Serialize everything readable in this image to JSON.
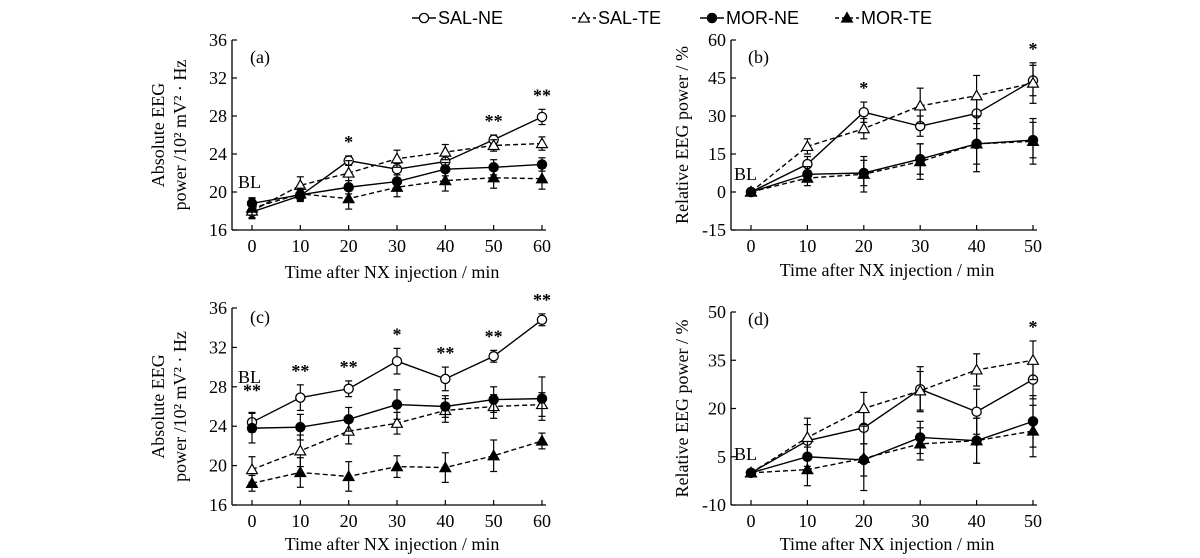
{
  "legend": [
    {
      "label": "SAL-NE",
      "marker": "circle-open",
      "line": "solid"
    },
    {
      "label": "SAL-TE",
      "marker": "triangle-open",
      "line": "dashed"
    },
    {
      "label": "MOR-NE",
      "marker": "circle-filled",
      "line": "solid"
    },
    {
      "label": "MOR-TE",
      "marker": "triangle-filled",
      "line": "dashed"
    }
  ],
  "chart_data": [
    {
      "panel": "(a)",
      "type": "line",
      "xlabel": "Time after NX injection / min",
      "ylabel_line1": "Absolute EEG",
      "ylabel_line2": "power /10² mV² · Hz",
      "xticks": [
        0,
        10,
        20,
        30,
        40,
        50,
        60
      ],
      "yticks": [
        16,
        20,
        24,
        28,
        32,
        36
      ],
      "ylim": [
        16,
        36
      ],
      "baseline_label": "BL",
      "series": [
        {
          "name": "SAL-NE",
          "values": [
            17.9,
            19.6,
            23.3,
            22.4,
            23.2,
            25.5,
            27.9
          ],
          "errors": [
            0.6,
            0.6,
            0.5,
            0.6,
            0.6,
            0.5,
            0.8
          ]
        },
        {
          "name": "SAL-TE",
          "values": [
            18.0,
            20.7,
            22.0,
            23.5,
            24.2,
            24.9,
            25.1
          ],
          "errors": [
            0.8,
            0.9,
            1.3,
            0.9,
            0.8,
            0.6,
            0.7
          ]
        },
        {
          "name": "MOR-NE",
          "values": [
            18.8,
            19.7,
            20.5,
            21.1,
            22.4,
            22.6,
            22.9
          ],
          "errors": [
            0.5,
            0.6,
            0.7,
            0.7,
            0.7,
            0.8,
            0.7
          ]
        },
        {
          "name": "MOR-TE",
          "values": [
            18.3,
            19.8,
            19.3,
            20.5,
            21.2,
            21.5,
            21.4
          ],
          "errors": [
            1.1,
            0.6,
            1.1,
            1.0,
            1.1,
            1.1,
            1.1
          ]
        }
      ],
      "annotations": [
        {
          "x": 20,
          "text": "*"
        },
        {
          "x": 50,
          "text": "**"
        },
        {
          "x": 60,
          "text": "**"
        }
      ]
    },
    {
      "panel": "(b)",
      "type": "line",
      "xlabel": "Time after NX injection / min",
      "ylabel_line1": "Relative EEG power / %",
      "ylabel_line2": "",
      "xticks": [
        0,
        10,
        20,
        30,
        40,
        50
      ],
      "yticks": [
        -15,
        0,
        15,
        30,
        45,
        60
      ],
      "ylim": [
        -15,
        60
      ],
      "baseline_label": "BL",
      "series": [
        {
          "name": "SAL-NE",
          "values": [
            0,
            11,
            31.5,
            26,
            31,
            44
          ],
          "errors": [
            1,
            3,
            4,
            4,
            6,
            6
          ]
        },
        {
          "name": "SAL-TE",
          "values": [
            0,
            18,
            25,
            34,
            38,
            43
          ],
          "errors": [
            1,
            3,
            4,
            7,
            8,
            8
          ]
        },
        {
          "name": "MOR-NE",
          "values": [
            0,
            7,
            7.5,
            13,
            19,
            20.5
          ],
          "errors": [
            1,
            3,
            5,
            6,
            8,
            7
          ]
        },
        {
          "name": "MOR-TE",
          "values": [
            0,
            5.5,
            7,
            12,
            19,
            20
          ],
          "errors": [
            1,
            3,
            7,
            7,
            11,
            9
          ]
        }
      ],
      "annotations": [
        {
          "x": 20,
          "text": "*"
        },
        {
          "x": 50,
          "text": "*"
        }
      ]
    },
    {
      "panel": "(c)",
      "type": "line",
      "xlabel": "Time after NX injection / min",
      "ylabel_line1": "Absolute EEG",
      "ylabel_line2": "power /10² mV² · Hz",
      "xticks": [
        0,
        10,
        20,
        30,
        40,
        50,
        60
      ],
      "yticks": [
        16,
        20,
        24,
        28,
        32,
        36
      ],
      "ylim": [
        16,
        36
      ],
      "baseline_label": "BL",
      "series": [
        {
          "name": "SAL-NE",
          "values": [
            24.4,
            26.9,
            27.8,
            30.6,
            28.8,
            31.1,
            34.8
          ],
          "errors": [
            1.0,
            1.3,
            0.8,
            1.3,
            1.2,
            0.6,
            0.6
          ]
        },
        {
          "name": "SAL-TE",
          "values": [
            19.6,
            21.5,
            23.5,
            24.3,
            25.6,
            26.0,
            26.2
          ],
          "errors": [
            1.3,
            1.6,
            1.3,
            1.1,
            1.2,
            1.2,
            1.2
          ]
        },
        {
          "name": "MOR-NE",
          "values": [
            23.8,
            23.9,
            24.7,
            26.2,
            26.0,
            26.7,
            26.8
          ],
          "errors": [
            1.5,
            1.3,
            1.2,
            1.5,
            1.1,
            1.3,
            2.2
          ]
        },
        {
          "name": "MOR-TE",
          "values": [
            18.2,
            19.3,
            18.9,
            19.9,
            19.8,
            21.0,
            22.5
          ],
          "errors": [
            0.8,
            1.5,
            1.5,
            1.1,
            1.5,
            1.6,
            0.8
          ]
        }
      ],
      "annotations": [
        {
          "x": 0,
          "text": "**"
        },
        {
          "x": 10,
          "text": "**"
        },
        {
          "x": 20,
          "text": "**"
        },
        {
          "x": 30,
          "text": "*"
        },
        {
          "x": 40,
          "text": "**"
        },
        {
          "x": 50,
          "text": "**"
        },
        {
          "x": 60,
          "text": "**"
        }
      ]
    },
    {
      "panel": "(d)",
      "type": "line",
      "xlabel": "Time after NX injection / min",
      "ylabel_line1": "Relative EEG power / %",
      "ylabel_line2": "",
      "xticks": [
        0,
        10,
        20,
        30,
        40,
        50
      ],
      "yticks": [
        -10,
        5,
        20,
        35,
        50
      ],
      "ylim": [
        -10,
        50
      ],
      "baseline_label": "BL",
      "series": [
        {
          "name": "SAL-NE",
          "values": [
            0,
            10,
            14,
            26,
            19,
            29
          ],
          "errors": [
            1,
            5,
            5,
            7,
            7,
            6
          ]
        },
        {
          "name": "SAL-TE",
          "values": [
            0,
            11,
            20,
            25.5,
            32,
            35
          ],
          "errors": [
            1,
            6,
            5,
            6,
            5,
            6
          ]
        },
        {
          "name": "MOR-NE",
          "values": [
            0,
            5,
            4,
            11,
            10,
            16
          ],
          "errors": [
            1,
            3,
            5,
            5,
            7,
            8
          ]
        },
        {
          "name": "MOR-TE",
          "values": [
            0,
            1,
            4.5,
            9,
            10,
            13
          ],
          "errors": [
            1,
            5,
            10,
            5,
            7,
            8
          ]
        }
      ],
      "annotations": [
        {
          "x": 50,
          "text": "*"
        }
      ]
    }
  ]
}
